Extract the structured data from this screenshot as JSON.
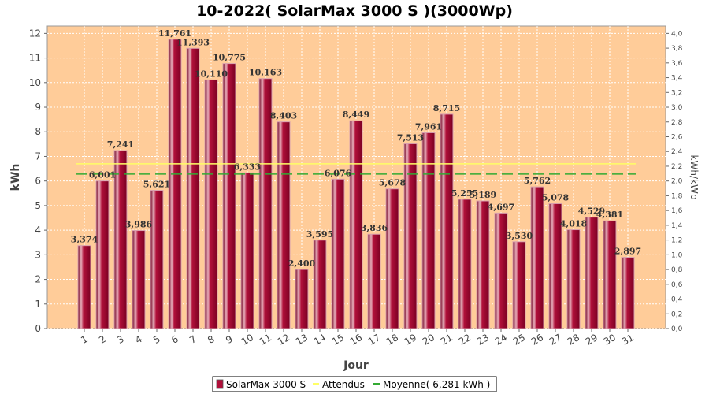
{
  "chart_data": {
    "type": "bar",
    "title": "10-2022( SolarMax 3000 S )(3000Wp)",
    "xlabel": "Jour",
    "ylabel": "kWh",
    "ylabel_right": "kWh/kWp",
    "ylim": [
      0,
      12.3
    ],
    "ylim_right": [
      0,
      4.1
    ],
    "yticks": [
      "0",
      "1",
      "2",
      "3",
      "4",
      "5",
      "6",
      "7",
      "8",
      "9",
      "10",
      "11",
      "12"
    ],
    "yticks_right": [
      "0,0",
      "0,2",
      "0,4",
      "0,6",
      "0,8",
      "1,0",
      "1,2",
      "1,4",
      "1,6",
      "1,8",
      "2,0",
      "2,2",
      "2,4",
      "2,6",
      "2,8",
      "3,0",
      "3,2",
      "3,4",
      "3,6",
      "3,8",
      "4,0"
    ],
    "categories": [
      "1",
      "2",
      "3",
      "4",
      "5",
      "6",
      "7",
      "8",
      "9",
      "10",
      "11",
      "12",
      "13",
      "14",
      "15",
      "16",
      "17",
      "18",
      "19",
      "20",
      "21",
      "22",
      "23",
      "24",
      "25",
      "26",
      "27",
      "28",
      "29",
      "30",
      "31"
    ],
    "series": [
      {
        "name": "SolarMax 3000 S",
        "color": "#B0103A",
        "values": [
          3.374,
          6.001,
          7.241,
          3.986,
          5.621,
          11.761,
          11.393,
          10.11,
          10.775,
          6.333,
          10.163,
          8.403,
          2.4,
          3.595,
          6.076,
          8.449,
          3.836,
          5.678,
          7.513,
          7.961,
          8.715,
          5.255,
          5.189,
          4.697,
          3.53,
          5.762,
          5.078,
          4.018,
          4.529,
          4.381,
          2.897
        ],
        "labels": [
          "3,374",
          "6,001",
          "7,241",
          "3,986",
          "5,621",
          "11,761",
          "11,393",
          "10,110",
          "10,775",
          "6,333",
          "10,163",
          "8,403",
          "2,400",
          "3,595",
          "6,076",
          "8,449",
          "3,836",
          "5,678",
          "7,513",
          "7,961",
          "8,715",
          "5,255",
          "5,189",
          "4,697",
          "3,530",
          "5,762",
          "5,078",
          "4,018",
          "4,529",
          "4,381",
          "2,897"
        ]
      }
    ],
    "attendus": {
      "name": "Attendus",
      "value": 6.7,
      "color": "#FFFF66"
    },
    "moyenne": {
      "name": "Moyenne( 6,281 kWh )",
      "value": 6.281,
      "color": "#33AA33"
    },
    "colors": {
      "plot_bg": "#FFCC99",
      "grid": "#FFFFFF",
      "bar": "#B0103A",
      "bar_highlight": "#E8B0BC"
    },
    "grid": true,
    "legend_position": "bottom-center"
  }
}
